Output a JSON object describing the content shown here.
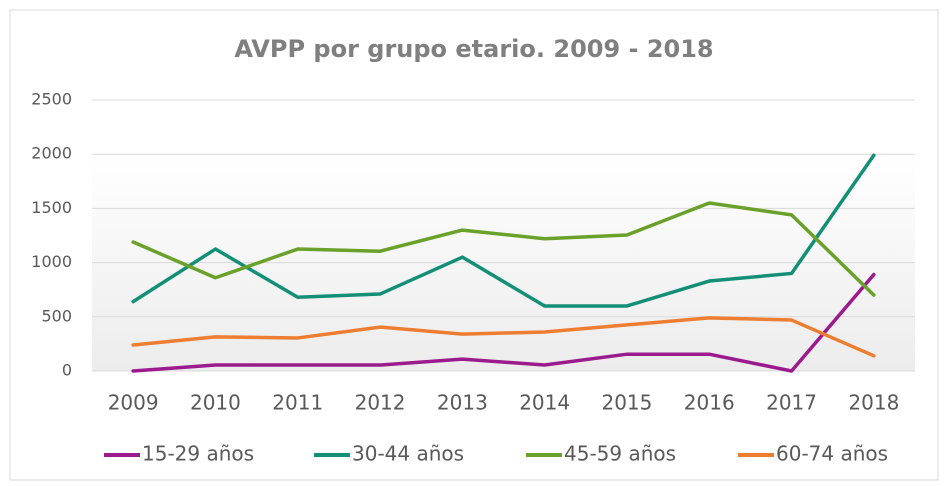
{
  "chart_data": {
    "type": "line",
    "title": "AVPP por grupo etario. 2009 - 2018",
    "categories": [
      "2009",
      "2010",
      "2011",
      "2012",
      "2013",
      "2014",
      "2015",
      "2016",
      "2017",
      "2018"
    ],
    "series": [
      {
        "name": "15-29 años",
        "color": "#9b1b8e",
        "values": [
          0,
          55,
          55,
          55,
          110,
          55,
          155,
          155,
          0,
          890
        ]
      },
      {
        "name": "30-44 años",
        "color": "#148f77",
        "values": [
          640,
          1125,
          680,
          710,
          1050,
          600,
          600,
          830,
          900,
          1990
        ]
      },
      {
        "name": "45-59 años",
        "color": "#6aa12a",
        "values": [
          1190,
          860,
          1125,
          1105,
          1300,
          1220,
          1255,
          1550,
          1440,
          700
        ]
      },
      {
        "name": "60-74 años",
        "color": "#ed7d31",
        "values": [
          240,
          315,
          305,
          405,
          340,
          360,
          425,
          490,
          470,
          140
        ]
      }
    ],
    "ylim": [
      0,
      2500
    ],
    "yticks": [
      0,
      500,
      1000,
      1500,
      2000,
      2500
    ],
    "grid": true,
    "legend": "bottom"
  }
}
